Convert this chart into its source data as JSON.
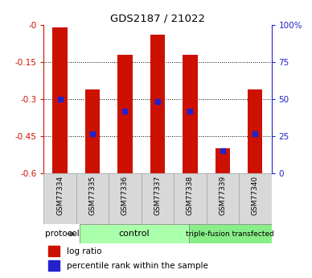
{
  "title": "GDS2187 / 21022",
  "samples": [
    "GSM77334",
    "GSM77335",
    "GSM77336",
    "GSM77337",
    "GSM77338",
    "GSM77339",
    "GSM77340"
  ],
  "log_ratio_bottom": [
    -0.6,
    -0.6,
    -0.6,
    -0.6,
    -0.6,
    -0.6,
    -0.6
  ],
  "log_ratio_top": [
    -0.01,
    -0.26,
    -0.12,
    -0.04,
    -0.12,
    -0.5,
    -0.26
  ],
  "percentile_rank_y": [
    -0.3,
    -0.44,
    -0.35,
    -0.31,
    -0.35,
    -0.51,
    -0.44
  ],
  "ylim_left": [
    -0.6,
    0.0
  ],
  "ylim_right": [
    0,
    100
  ],
  "yticks_left": [
    0.0,
    -0.15,
    -0.3,
    -0.45,
    -0.6
  ],
  "ytick_labels_left": [
    "-0",
    "-0.15",
    "-0.3",
    "-0.45",
    "-0.6"
  ],
  "yticks_right": [
    100,
    75,
    50,
    25,
    0
  ],
  "ytick_labels_right": [
    "100%",
    "75",
    "50",
    "25",
    "0"
  ],
  "bar_color": "#cc1100",
  "dot_color": "#2222cc",
  "control_label": "control",
  "transfected_label": "triple-fusion transfected",
  "protocol_label": "protocol",
  "legend_bar": "log ratio",
  "legend_dot": "percentile rank within the sample",
  "control_color": "#aaffaa",
  "transfected_color": "#88ee88",
  "left_axis_color": "#cc1100",
  "right_axis_color": "#2222cc",
  "bar_width": 0.45,
  "n_control": 4,
  "n_transfected": 3
}
